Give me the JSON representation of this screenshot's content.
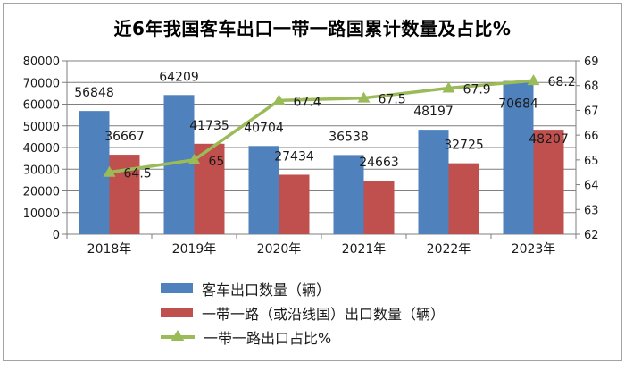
{
  "title": "近6年我国客车出口一带一路国累计数量及占比%",
  "chart_data": {
    "type": "bar",
    "subtype": "grouped bars with secondary-axis line",
    "title": "近6年我国客车出口一带一路国累计数量及占比%",
    "categories": [
      "2018年",
      "2019年",
      "2020年",
      "2021年",
      "2022年",
      "2023年"
    ],
    "series": [
      {
        "name": "客车出口数量（辆）",
        "type": "bar",
        "axis": "left",
        "color": "#4F81BD",
        "values": [
          56848,
          64209,
          40704,
          36538,
          48197,
          70684
        ],
        "label_dy": [
          0,
          0,
          0,
          0,
          0,
          46
        ]
      },
      {
        "name": "一带一路（或沿线国）出口数量（辆）",
        "type": "bar",
        "axis": "left",
        "color": "#C0504D",
        "values": [
          36667,
          41735,
          27434,
          24663,
          32725,
          48207
        ],
        "label_dy": [
          0,
          0,
          0,
          0,
          0,
          31
        ]
      },
      {
        "name": "一带一路出口占比%",
        "type": "line",
        "axis": "right",
        "color": "#9BBB59",
        "marker": "triangle-up",
        "values": [
          64.5,
          65,
          67.4,
          67.5,
          67.9,
          68.2
        ]
      }
    ],
    "left_axis": {
      "min": 0,
      "max": 80000,
      "step": 10000,
      "ticks": [
        "0",
        "10000",
        "20000",
        "30000",
        "40000",
        "50000",
        "60000",
        "70000",
        "80000"
      ]
    },
    "right_axis": {
      "min": 62,
      "max": 69,
      "step": 1,
      "ticks": [
        "62",
        "63",
        "64",
        "65",
        "66",
        "67",
        "68",
        "69"
      ]
    },
    "grid": true,
    "gridline_color": "#7f7f7f",
    "axis_color": "#7f7f7f",
    "label_color": "#1a1a1a",
    "legend_position": "bottom-left",
    "data_labels": true
  }
}
